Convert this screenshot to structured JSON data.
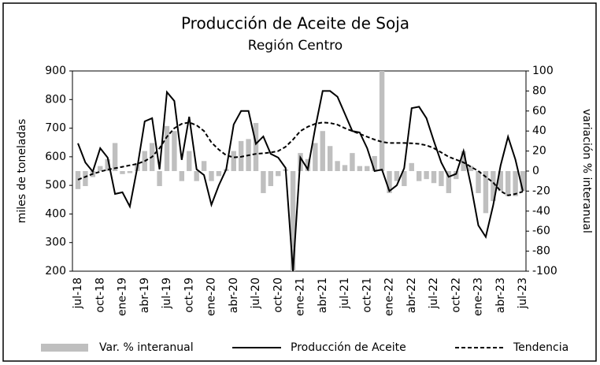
{
  "chart_data": {
    "type": "line",
    "title": "Producción de Aceite de Soja",
    "subtitle": "Región Centro",
    "ylabel": "miles de toneladas",
    "y2label": "variación % interanual",
    "categories": [
      "jul-18",
      null,
      null,
      "oct-18",
      null,
      null,
      "ene-19",
      null,
      null,
      "abr-19",
      null,
      null,
      "jul-19",
      null,
      null,
      "oct-19",
      null,
      null,
      "ene-20",
      null,
      null,
      "abr-20",
      null,
      null,
      "jul-20",
      null,
      null,
      "oct-20",
      null,
      null,
      "ene-21",
      null,
      null,
      "abr-21",
      null,
      null,
      "jul-21",
      null,
      null,
      "oct-21",
      null,
      null,
      "ene-22",
      null,
      null,
      "abr-22",
      null,
      null,
      "jul-22",
      null,
      null,
      "oct-22",
      null,
      null,
      "ene-23",
      null,
      null,
      "abr-23",
      null,
      null,
      "jul-23"
    ],
    "ylim": [
      200,
      900
    ],
    "yticks": [
      200,
      300,
      400,
      500,
      600,
      700,
      800,
      900
    ],
    "y2lim": [
      -100,
      100
    ],
    "y2ticks": [
      -100,
      -80,
      -60,
      -40,
      -20,
      0,
      20,
      40,
      60,
      80,
      100
    ],
    "series": [
      {
        "name": "Var. % interanual",
        "type": "bar",
        "axis": "y2",
        "color": "#bfbfbf",
        "values": [
          -18,
          -15,
          -6,
          5,
          12,
          28,
          -3,
          -2,
          8,
          20,
          28,
          -15,
          45,
          40,
          -10,
          20,
          -10,
          10,
          -10,
          -5,
          2,
          20,
          30,
          32,
          48,
          -22,
          -15,
          -5,
          2,
          -100,
          18,
          12,
          28,
          40,
          25,
          10,
          6,
          18,
          5,
          5,
          15,
          100,
          -22,
          -10,
          -15,
          8,
          -10,
          -8,
          -12,
          -15,
          -22,
          -8,
          20,
          5,
          -22,
          -42,
          -30,
          -20,
          -25,
          -25,
          -20
        ]
      },
      {
        "name": "Producción de Aceite",
        "type": "line",
        "color": "#000000",
        "values": [
          647,
          580,
          548,
          630,
          597,
          470,
          476,
          426,
          561,
          724,
          735,
          556,
          826,
          795,
          589,
          740,
          556,
          536,
          432,
          500,
          556,
          713,
          760,
          760,
          645,
          671,
          610,
          597,
          561,
          200,
          597,
          556,
          700,
          830,
          830,
          810,
          750,
          690,
          685,
          630,
          550,
          555,
          480,
          500,
          560,
          770,
          775,
          735,
          655,
          580,
          530,
          540,
          620,
          500,
          360,
          320,
          430,
          570,
          670,
          590,
          480
        ]
      },
      {
        "name": "Tendencia",
        "type": "dashed",
        "color": "#000000",
        "values": [
          520,
          530,
          540,
          548,
          555,
          560,
          565,
          570,
          575,
          585,
          600,
          630,
          670,
          700,
          715,
          720,
          710,
          690,
          650,
          625,
          605,
          598,
          600,
          605,
          610,
          612,
          615,
          620,
          635,
          660,
          690,
          705,
          715,
          720,
          718,
          712,
          700,
          690,
          680,
          670,
          660,
          652,
          648,
          648,
          648,
          647,
          645,
          640,
          630,
          615,
          600,
          590,
          580,
          565,
          550,
          530,
          510,
          480,
          465,
          470,
          478
        ]
      }
    ]
  }
}
